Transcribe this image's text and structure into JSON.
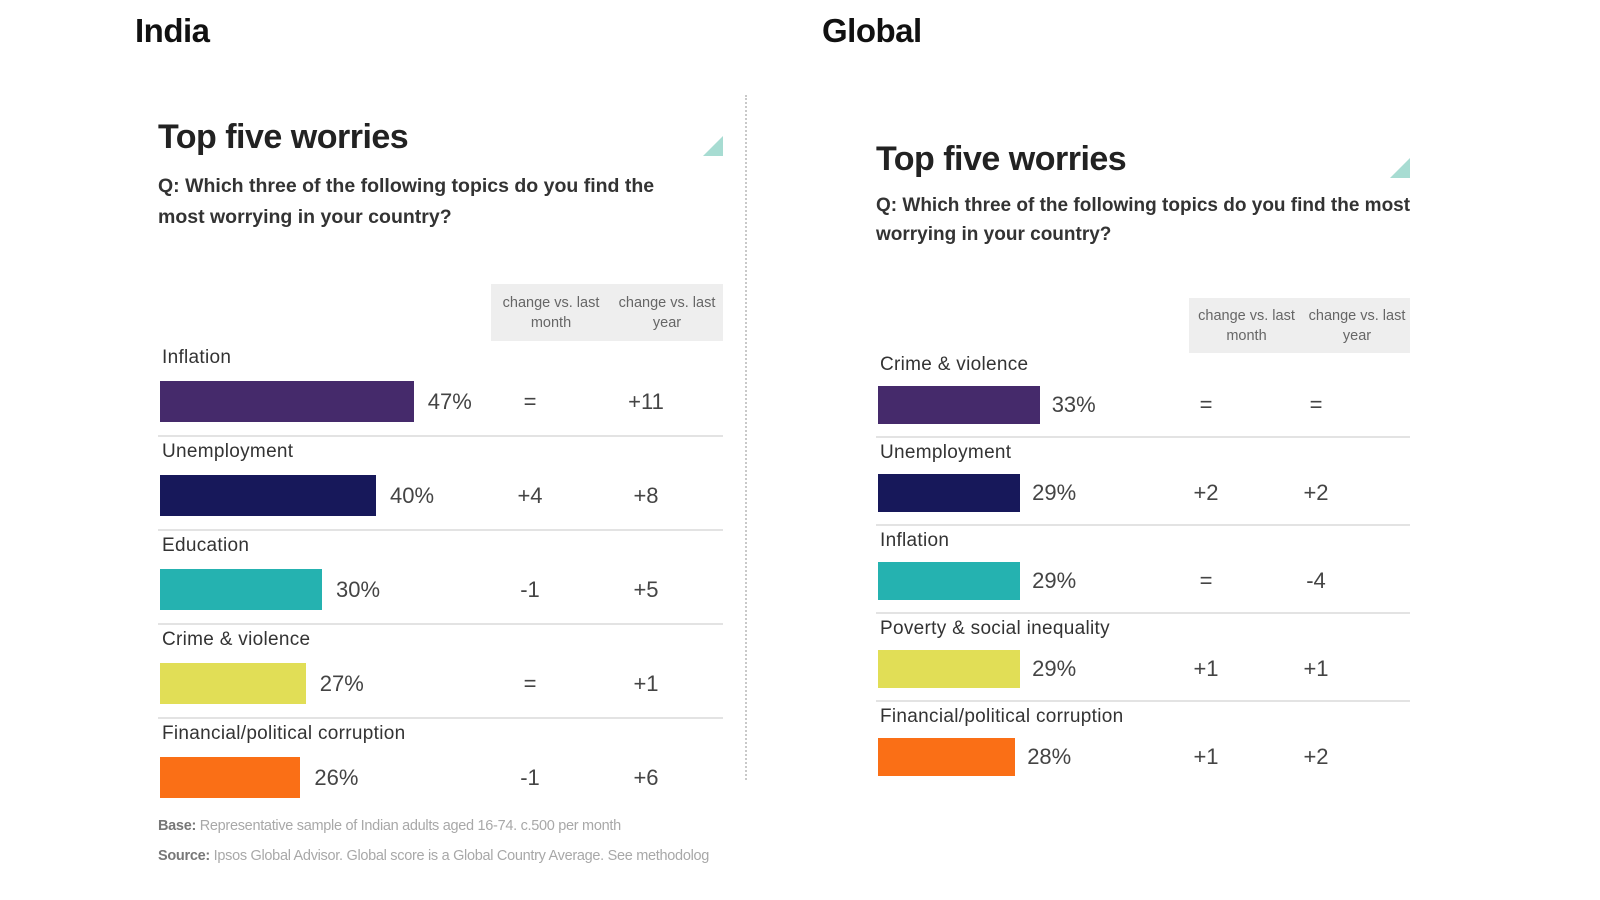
{
  "region_titles": {
    "left": "India",
    "right": "Global"
  },
  "colors": [
    "#452a6b",
    "#17185a",
    "#25b2b0",
    "#e1de56",
    "#fa6f16"
  ],
  "chart_data": [
    {
      "type": "bar",
      "title": "Top five worries",
      "subtitle": "Q: Which three of the following topics do you find the most worrying in your country?",
      "column_headers": [
        "change vs. last month",
        "change vs. last year"
      ],
      "categories": [
        "Inflation",
        "Unemployment",
        "Education",
        "Crime & violence",
        "Financial/political corruption"
      ],
      "values": [
        47,
        40,
        30,
        27,
        26
      ],
      "value_labels": [
        "47%",
        "40%",
        "30%",
        "27%",
        "26%"
      ],
      "change_vs_last_month": [
        "=",
        "+4",
        "-1",
        "=",
        "-1"
      ],
      "change_vs_last_year": [
        "+11",
        "+8",
        "+5",
        "+1",
        "+6"
      ]
    },
    {
      "type": "bar",
      "title": "Top five worries",
      "subtitle": "Q: Which three of the following topics do you find the most worrying in your country?",
      "column_headers": [
        "change vs. last month",
        "change vs. last year"
      ],
      "categories": [
        "Crime & violence",
        "Unemployment",
        "Inflation",
        "Poverty & social inequality",
        "Financial/political corruption"
      ],
      "values": [
        33,
        29,
        29,
        29,
        28
      ],
      "value_labels": [
        "33%",
        "29%",
        "29%",
        "29%",
        "28%"
      ],
      "change_vs_last_month": [
        "=",
        "+2",
        "=",
        "+1",
        "+1"
      ],
      "change_vs_last_year": [
        "=",
        "+2",
        "-4",
        "+1",
        "+2"
      ]
    }
  ],
  "footer": {
    "base_label": "Base:",
    "base_text": "Representative sample of Indian adults aged 16-74. c.500 per month",
    "source_label": "Source:",
    "source_text": "Ipsos Global Advisor. Global score is a Global Country Average. See methodolog"
  }
}
